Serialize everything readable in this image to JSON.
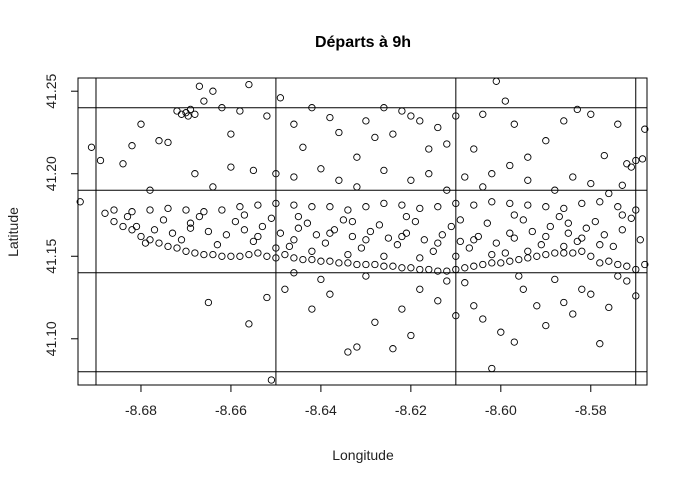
{
  "chart_data": {
    "type": "scatter",
    "title": "Départs à 9h",
    "xlabel": "Longitude",
    "ylabel": "Latitude",
    "xlim": [
      -8.694,
      -8.5675
    ],
    "ylim": [
      41.072,
      41.258
    ],
    "x_ticks": [
      -8.68,
      -8.66,
      -8.64,
      -8.62,
      -8.6,
      -8.58
    ],
    "x_tick_labels": [
      "-8.68",
      "-8.66",
      "-8.64",
      "-8.62",
      "-8.60",
      "-8.58"
    ],
    "y_ticks": [
      41.1,
      41.15,
      41.2,
      41.25
    ],
    "y_tick_labels": [
      "41.10",
      "41.15",
      "41.20",
      "41.25"
    ],
    "grid_lines_x": [
      -8.69,
      -8.65,
      -8.61,
      -8.57
    ],
    "grid_lines_y": [
      41.08,
      41.14,
      41.19,
      41.24
    ],
    "marker": "open-circle",
    "point_color": "#000000",
    "points": [
      [
        -8.6935,
        41.183
      ],
      [
        -8.688,
        41.176
      ],
      [
        -8.686,
        41.171
      ],
      [
        -8.684,
        41.168
      ],
      [
        -8.682,
        41.166
      ],
      [
        -8.68,
        41.162
      ],
      [
        -8.678,
        41.16
      ],
      [
        -8.676,
        41.158
      ],
      [
        -8.674,
        41.156
      ],
      [
        -8.672,
        41.155
      ],
      [
        -8.67,
        41.153
      ],
      [
        -8.668,
        41.152
      ],
      [
        -8.666,
        41.151
      ],
      [
        -8.664,
        41.151
      ],
      [
        -8.662,
        41.15
      ],
      [
        -8.66,
        41.15
      ],
      [
        -8.658,
        41.15
      ],
      [
        -8.656,
        41.151
      ],
      [
        -8.654,
        41.152
      ],
      [
        -8.652,
        41.15
      ],
      [
        -8.65,
        41.149
      ],
      [
        -8.648,
        41.151
      ],
      [
        -8.646,
        41.149
      ],
      [
        -8.644,
        41.148
      ],
      [
        -8.642,
        41.148
      ],
      [
        -8.64,
        41.147
      ],
      [
        -8.638,
        41.147
      ],
      [
        -8.636,
        41.146
      ],
      [
        -8.634,
        41.146
      ],
      [
        -8.632,
        41.145
      ],
      [
        -8.63,
        41.145
      ],
      [
        -8.628,
        41.145
      ],
      [
        -8.626,
        41.144
      ],
      [
        -8.624,
        41.144
      ],
      [
        -8.622,
        41.143
      ],
      [
        -8.62,
        41.143
      ],
      [
        -8.618,
        41.142
      ],
      [
        -8.616,
        41.142
      ],
      [
        -8.614,
        41.141
      ],
      [
        -8.612,
        41.141
      ],
      [
        -8.61,
        41.142
      ],
      [
        -8.608,
        41.143
      ],
      [
        -8.606,
        41.144
      ],
      [
        -8.604,
        41.145
      ],
      [
        -8.602,
        41.146
      ],
      [
        -8.6,
        41.146
      ],
      [
        -8.598,
        41.147
      ],
      [
        -8.596,
        41.148
      ],
      [
        -8.594,
        41.149
      ],
      [
        -8.592,
        41.15
      ],
      [
        -8.59,
        41.151
      ],
      [
        -8.588,
        41.152
      ],
      [
        -8.586,
        41.152
      ],
      [
        -8.584,
        41.152
      ],
      [
        -8.582,
        41.153
      ],
      [
        -8.58,
        41.15
      ],
      [
        -8.578,
        41.146
      ],
      [
        -8.576,
        41.147
      ],
      [
        -8.574,
        41.145
      ],
      [
        -8.572,
        41.144
      ],
      [
        -8.57,
        41.142
      ],
      [
        -8.568,
        41.145
      ],
      [
        -8.686,
        41.178
      ],
      [
        -8.682,
        41.177
      ],
      [
        -8.678,
        41.178
      ],
      [
        -8.674,
        41.179
      ],
      [
        -8.67,
        41.178
      ],
      [
        -8.666,
        41.177
      ],
      [
        -8.662,
        41.178
      ],
      [
        -8.658,
        41.18
      ],
      [
        -8.654,
        41.181
      ],
      [
        -8.65,
        41.182
      ],
      [
        -8.646,
        41.181
      ],
      [
        -8.642,
        41.18
      ],
      [
        -8.638,
        41.18
      ],
      [
        -8.634,
        41.178
      ],
      [
        -8.63,
        41.18
      ],
      [
        -8.626,
        41.182
      ],
      [
        -8.622,
        41.181
      ],
      [
        -8.618,
        41.179
      ],
      [
        -8.614,
        41.18
      ],
      [
        -8.61,
        41.182
      ],
      [
        -8.606,
        41.181
      ],
      [
        -8.602,
        41.183
      ],
      [
        -8.598,
        41.182
      ],
      [
        -8.594,
        41.181
      ],
      [
        -8.59,
        41.18
      ],
      [
        -8.586,
        41.179
      ],
      [
        -8.582,
        41.182
      ],
      [
        -8.578,
        41.183
      ],
      [
        -8.574,
        41.18
      ],
      [
        -8.57,
        41.178
      ],
      [
        -8.681,
        41.168
      ],
      [
        -8.677,
        41.166
      ],
      [
        -8.673,
        41.164
      ],
      [
        -8.669,
        41.167
      ],
      [
        -8.665,
        41.165
      ],
      [
        -8.661,
        41.163
      ],
      [
        -8.657,
        41.166
      ],
      [
        -8.653,
        41.168
      ],
      [
        -8.649,
        41.164
      ],
      [
        -8.645,
        41.167
      ],
      [
        -8.641,
        41.163
      ],
      [
        -8.637,
        41.166
      ],
      [
        -8.633,
        41.162
      ],
      [
        -8.629,
        41.165
      ],
      [
        -8.625,
        41.161
      ],
      [
        -8.621,
        41.164
      ],
      [
        -8.617,
        41.16
      ],
      [
        -8.613,
        41.163
      ],
      [
        -8.609,
        41.159
      ],
      [
        -8.605,
        41.162
      ],
      [
        -8.601,
        41.158
      ],
      [
        -8.597,
        41.161
      ],
      [
        -8.593,
        41.165
      ],
      [
        -8.589,
        41.168
      ],
      [
        -8.585,
        41.164
      ],
      [
        -8.581,
        41.167
      ],
      [
        -8.577,
        41.163
      ],
      [
        -8.573,
        41.166
      ],
      [
        -8.569,
        41.16
      ],
      [
        -8.679,
        41.158
      ],
      [
        -8.671,
        41.16
      ],
      [
        -8.663,
        41.157
      ],
      [
        -8.655,
        41.159
      ],
      [
        -8.647,
        41.156
      ],
      [
        -8.639,
        41.158
      ],
      [
        -8.631,
        41.155
      ],
      [
        -8.623,
        41.157
      ],
      [
        -8.615,
        41.153
      ],
      [
        -8.607,
        41.155
      ],
      [
        -8.599,
        41.152
      ],
      [
        -8.591,
        41.157
      ],
      [
        -8.583,
        41.159
      ],
      [
        -8.575,
        41.156
      ],
      [
        -8.675,
        41.172
      ],
      [
        -8.667,
        41.174
      ],
      [
        -8.659,
        41.171
      ],
      [
        -8.651,
        41.173
      ],
      [
        -8.643,
        41.17
      ],
      [
        -8.635,
        41.172
      ],
      [
        -8.627,
        41.169
      ],
      [
        -8.619,
        41.171
      ],
      [
        -8.611,
        41.168
      ],
      [
        -8.603,
        41.17
      ],
      [
        -8.595,
        41.172
      ],
      [
        -8.587,
        41.174
      ],
      [
        -8.579,
        41.171
      ],
      [
        -8.571,
        41.173
      ],
      [
        -8.683,
        41.174
      ],
      [
        -8.669,
        41.17
      ],
      [
        -8.657,
        41.175
      ],
      [
        -8.645,
        41.174
      ],
      [
        -8.633,
        41.171
      ],
      [
        -8.621,
        41.174
      ],
      [
        -8.609,
        41.172
      ],
      [
        -8.597,
        41.175
      ],
      [
        -8.585,
        41.17
      ],
      [
        -8.573,
        41.175
      ],
      [
        -8.654,
        41.162
      ],
      [
        -8.646,
        41.16
      ],
      [
        -8.638,
        41.164
      ],
      [
        -8.63,
        41.16
      ],
      [
        -8.622,
        41.162
      ],
      [
        -8.614,
        41.158
      ],
      [
        -8.606,
        41.16
      ],
      [
        -8.598,
        41.164
      ],
      [
        -8.59,
        41.162
      ],
      [
        -8.582,
        41.161
      ],
      [
        -8.65,
        41.155
      ],
      [
        -8.642,
        41.153
      ],
      [
        -8.634,
        41.151
      ],
      [
        -8.626,
        41.15
      ],
      [
        -8.618,
        41.149
      ],
      [
        -8.61,
        41.15
      ],
      [
        -8.602,
        41.151
      ],
      [
        -8.594,
        41.153
      ],
      [
        -8.586,
        41.156
      ],
      [
        -8.578,
        41.157
      ],
      [
        -8.691,
        41.216
      ],
      [
        -8.689,
        41.208
      ],
      [
        -8.68,
        41.23
      ],
      [
        -8.676,
        41.22
      ],
      [
        -8.674,
        41.219
      ],
      [
        -8.672,
        41.238
      ],
      [
        -8.671,
        41.236
      ],
      [
        -8.67,
        41.237
      ],
      [
        -8.6695,
        41.235
      ],
      [
        -8.669,
        41.239
      ],
      [
        -8.668,
        41.236
      ],
      [
        -8.667,
        41.253
      ],
      [
        -8.666,
        41.244
      ],
      [
        -8.664,
        41.25
      ],
      [
        -8.662,
        41.24
      ],
      [
        -8.66,
        41.224
      ],
      [
        -8.658,
        41.238
      ],
      [
        -8.656,
        41.254
      ],
      [
        -8.652,
        41.235
      ],
      [
        -8.649,
        41.246
      ],
      [
        -8.646,
        41.23
      ],
      [
        -8.644,
        41.216
      ],
      [
        -8.642,
        41.24
      ],
      [
        -8.638,
        41.234
      ],
      [
        -8.636,
        41.225
      ],
      [
        -8.632,
        41.21
      ],
      [
        -8.63,
        41.232
      ],
      [
        -8.628,
        41.222
      ],
      [
        -8.626,
        41.24
      ],
      [
        -8.624,
        41.224
      ],
      [
        -8.622,
        41.238
      ],
      [
        -8.62,
        41.235
      ],
      [
        -8.618,
        41.232
      ],
      [
        -8.616,
        41.215
      ],
      [
        -8.614,
        41.228
      ],
      [
        -8.612,
        41.218
      ],
      [
        -8.61,
        41.235
      ],
      [
        -8.606,
        41.215
      ],
      [
        -8.604,
        41.236
      ],
      [
        -8.602,
        41.2
      ],
      [
        -8.601,
        41.256
      ],
      [
        -8.599,
        41.244
      ],
      [
        -8.597,
        41.23
      ],
      [
        -8.594,
        41.21
      ],
      [
        -8.59,
        41.22
      ],
      [
        -8.586,
        41.232
      ],
      [
        -8.583,
        41.239
      ],
      [
        -8.58,
        41.236
      ],
      [
        -8.577,
        41.211
      ],
      [
        -8.574,
        41.23
      ],
      [
        -8.572,
        41.206
      ],
      [
        -8.57,
        41.208
      ],
      [
        -8.568,
        41.227
      ],
      [
        -8.5685,
        41.209
      ],
      [
        -8.571,
        41.204
      ],
      [
        -8.684,
        41.206
      ],
      [
        -8.682,
        41.217
      ],
      [
        -8.678,
        41.19
      ],
      [
        -8.668,
        41.2
      ],
      [
        -8.664,
        41.192
      ],
      [
        -8.66,
        41.204
      ],
      [
        -8.655,
        41.202
      ],
      [
        -8.65,
        41.2
      ],
      [
        -8.646,
        41.198
      ],
      [
        -8.64,
        41.203
      ],
      [
        -8.636,
        41.196
      ],
      [
        -8.632,
        41.192
      ],
      [
        -8.626,
        41.202
      ],
      [
        -8.62,
        41.196
      ],
      [
        -8.616,
        41.2
      ],
      [
        -8.612,
        41.19
      ],
      [
        -8.608,
        41.198
      ],
      [
        -8.604,
        41.192
      ],
      [
        -8.598,
        41.205
      ],
      [
        -8.594,
        41.196
      ],
      [
        -8.588,
        41.19
      ],
      [
        -8.584,
        41.198
      ],
      [
        -8.58,
        41.194
      ],
      [
        -8.576,
        41.188
      ],
      [
        -8.573,
        41.193
      ],
      [
        -8.665,
        41.122
      ],
      [
        -8.656,
        41.109
      ],
      [
        -8.652,
        41.125
      ],
      [
        -8.648,
        41.13
      ],
      [
        -8.642,
        41.118
      ],
      [
        -8.638,
        41.127
      ],
      [
        -8.634,
        41.092
      ],
      [
        -8.632,
        41.095
      ],
      [
        -8.628,
        41.11
      ],
      [
        -8.624,
        41.094
      ],
      [
        -8.622,
        41.118
      ],
      [
        -8.62,
        41.102
      ],
      [
        -8.614,
        41.123
      ],
      [
        -8.612,
        41.135
      ],
      [
        -8.61,
        41.114
      ],
      [
        -8.606,
        41.12
      ],
      [
        -8.604,
        41.112
      ],
      [
        -8.602,
        41.082
      ],
      [
        -8.6,
        41.104
      ],
      [
        -8.597,
        41.098
      ],
      [
        -8.595,
        41.13
      ],
      [
        -8.592,
        41.12
      ],
      [
        -8.59,
        41.108
      ],
      [
        -8.586,
        41.122
      ],
      [
        -8.584,
        41.115
      ],
      [
        -8.58,
        41.127
      ],
      [
        -8.578,
        41.097
      ],
      [
        -8.576,
        41.119
      ],
      [
        -8.572,
        41.135
      ],
      [
        -8.57,
        41.126
      ],
      [
        -8.651,
        41.075
      ],
      [
        -8.646,
        41.14
      ],
      [
        -8.64,
        41.136
      ],
      [
        -8.63,
        41.138
      ],
      [
        -8.618,
        41.13
      ],
      [
        -8.608,
        41.134
      ],
      [
        -8.596,
        41.138
      ],
      [
        -8.588,
        41.136
      ],
      [
        -8.582,
        41.13
      ],
      [
        -8.574,
        41.138
      ]
    ]
  }
}
